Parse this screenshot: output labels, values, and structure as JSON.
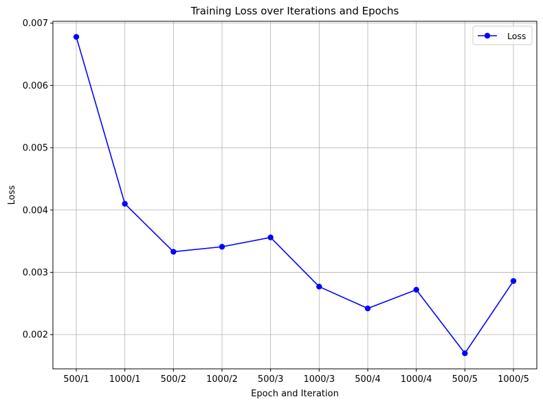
{
  "chart_data": {
    "type": "line",
    "title": "Training Loss over Iterations and Epochs",
    "xlabel": "Epoch and Iteration",
    "ylabel": "Loss",
    "categories": [
      "500/1",
      "1000/1",
      "500/2",
      "1000/2",
      "500/3",
      "1000/3",
      "500/4",
      "1000/4",
      "500/5",
      "1000/5"
    ],
    "series": [
      {
        "name": "Loss",
        "color": "#0000ff",
        "marker": "circle",
        "values": [
          0.00678,
          0.0041,
          0.00333,
          0.00341,
          0.00356,
          0.00277,
          0.00242,
          0.00272,
          0.0017,
          0.00286
        ]
      }
    ],
    "ylim": [
      0.00145,
      0.00703
    ],
    "yticks": [
      0.002,
      0.003,
      0.004,
      0.005,
      0.006,
      0.007
    ],
    "ytick_labels": [
      "0.002",
      "0.003",
      "0.004",
      "0.005",
      "0.006",
      "0.007"
    ],
    "grid": true,
    "legend_position": "top-right"
  }
}
